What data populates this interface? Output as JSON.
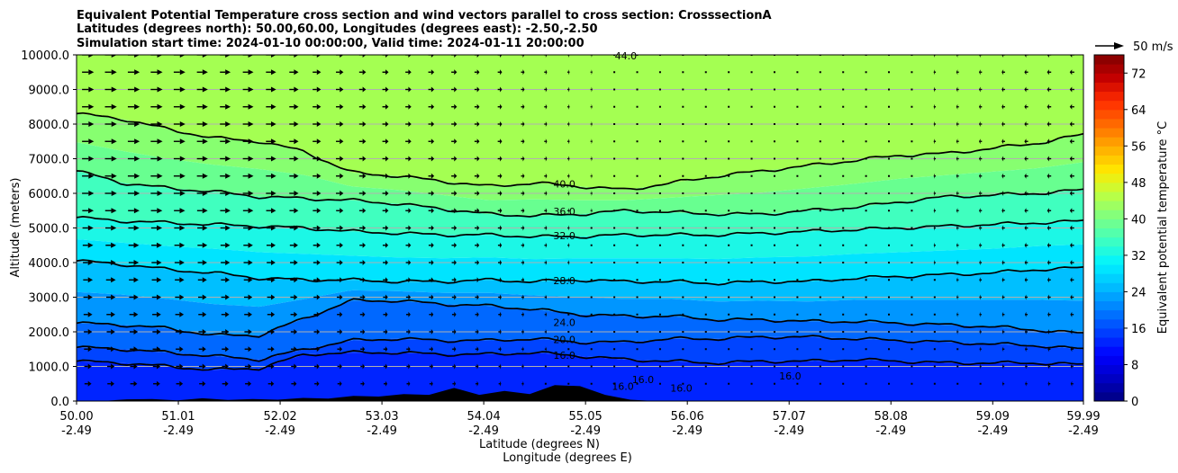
{
  "chart_data": {
    "type": "heatmap",
    "title_lines": [
      "Equivalent Potential Temperature cross section and wind vectors parallel to cross section: CrosssectionA",
      "Latitudes (degrees north): 50.00,60.00, Longitudes (degrees east): -2.50,-2.50",
      "Simulation start time: 2024-01-10 00:00:00, Valid time: 2024-01-11 20:00:00"
    ],
    "ylabel": "Altitude (meters)",
    "xlabel_lines": [
      "Latitude (degrees N)",
      "Longitude (degrees E)"
    ],
    "ylim": [
      0,
      10000
    ],
    "y_ticks": [
      "0.0",
      "1000.0",
      "2000.0",
      "3000.0",
      "4000.0",
      "5000.0",
      "6000.0",
      "7000.0",
      "8000.0",
      "9000.0",
      "10000.0"
    ],
    "x_ticks_lat": [
      "50.00",
      "51.01",
      "52.02",
      "53.03",
      "54.04",
      "55.05",
      "56.06",
      "57.07",
      "58.08",
      "59.09",
      "59.99"
    ],
    "x_ticks_lon": [
      "-2.49",
      "-2.49",
      "-2.49",
      "-2.49",
      "-2.49",
      "-2.49",
      "-2.49",
      "-2.49",
      "-2.49",
      "-2.49",
      "-2.49"
    ],
    "grid": "horizontal",
    "colorbar": {
      "label": "Equivalent potential temperature °C",
      "range": [
        0,
        76
      ],
      "ticks": [
        "0",
        "8",
        "16",
        "24",
        "32",
        "40",
        "48",
        "56",
        "64",
        "72"
      ],
      "colors": [
        "#00007f",
        "#0000c4",
        "#0000ff",
        "#0040ff",
        "#0080ff",
        "#00bfff",
        "#00f4ff",
        "#40ffbf",
        "#7fff80",
        "#bfff40",
        "#ffe800",
        "#ffac00",
        "#ff6a00",
        "#ff2d00",
        "#c40000",
        "#7f0000"
      ]
    },
    "contour_levels": [
      "16.0",
      "20.0",
      "24.0",
      "28.0",
      "32.0",
      "36.0",
      "40.0",
      "44.0"
    ],
    "contour_labels": [
      {
        "text": "40.0",
        "lat": 54.84,
        "alt": 6250
      },
      {
        "text": "36.0",
        "lat": 54.84,
        "alt": 5450
      },
      {
        "text": "32.0",
        "lat": 54.84,
        "alt": 4750
      },
      {
        "text": "28.0",
        "lat": 54.84,
        "alt": 3450
      },
      {
        "text": "24.0",
        "lat": 54.84,
        "alt": 2250
      },
      {
        "text": "20.0",
        "lat": 54.84,
        "alt": 1750
      },
      {
        "text": "16.0",
        "lat": 54.84,
        "alt": 1300
      },
      {
        "text": "16.0",
        "lat": 55.62,
        "alt": 600
      },
      {
        "text": "16.0",
        "lat": 55.42,
        "alt": 400
      },
      {
        "text": "16.0",
        "lat": 56.0,
        "alt": 350
      },
      {
        "text": "16.0",
        "lat": 57.08,
        "alt": 700
      },
      {
        "text": "44.0",
        "lat": 55.45,
        "alt": 9950
      }
    ],
    "contours": [
      {
        "level": 16,
        "alts": [
          1150,
          1100,
          1000,
          900,
          950,
          1350,
          1400,
          1400,
          1350,
          1350,
          1400,
          1300,
          1200,
          1150,
          1100,
          1150,
          1150,
          1200,
          1150,
          1100,
          1100,
          1100,
          1050
        ]
      },
      {
        "level": 20,
        "alts": [
          1550,
          1500,
          1400,
          1300,
          1200,
          1500,
          1750,
          1800,
          1750,
          1750,
          1800,
          1700,
          1700,
          1800,
          1800,
          1850,
          1850,
          1800,
          1750,
          1700,
          1650,
          1600,
          1500
        ]
      },
      {
        "level": 24,
        "alts": [
          2250,
          2200,
          2100,
          1900,
          1900,
          2400,
          2900,
          2900,
          2800,
          2750,
          2650,
          2500,
          2450,
          2450,
          2350,
          2350,
          2300,
          2300,
          2250,
          2200,
          2150,
          2050,
          1950
        ]
      },
      {
        "level": 28,
        "alts": [
          4050,
          3950,
          3800,
          3700,
          3550,
          3500,
          3500,
          3450,
          3450,
          3500,
          3450,
          3500,
          3450,
          3450,
          3400,
          3450,
          3450,
          3550,
          3600,
          3650,
          3700,
          3800,
          3850
        ]
      },
      {
        "level": 32,
        "alts": [
          5300,
          5200,
          5150,
          5100,
          5050,
          5000,
          4900,
          4850,
          4800,
          4800,
          4750,
          4750,
          4800,
          4800,
          4800,
          4850,
          4900,
          4950,
          5000,
          5050,
          5100,
          5150,
          5200
        ]
      },
      {
        "level": 36,
        "alts": [
          6650,
          6300,
          6150,
          6050,
          5900,
          5850,
          5800,
          5700,
          5550,
          5400,
          5350,
          5400,
          5500,
          5450,
          5400,
          5400,
          5500,
          5600,
          5750,
          5900,
          5950,
          6000,
          6100
        ]
      },
      {
        "level": 40,
        "alts": [
          8300,
          8150,
          7850,
          7600,
          7500,
          7200,
          6600,
          6500,
          6350,
          6200,
          6300,
          6200,
          6100,
          6300,
          6500,
          6650,
          6800,
          6950,
          7100,
          7150,
          7300,
          7450,
          7700
        ]
      }
    ],
    "fill_bands": [
      {
        "color": "#a4ff52"
      },
      {
        "color": "#87ff70"
      },
      {
        "color": "#68ff90"
      },
      {
        "color": "#40ffbf"
      },
      {
        "color": "#1cf7e6"
      },
      {
        "color": "#00e4ff"
      },
      {
        "color": "#00bfff"
      },
      {
        "color": "#0096ff"
      },
      {
        "color": "#0068ff"
      },
      {
        "color": "#0044ff"
      },
      {
        "color": "#0024ff"
      }
    ],
    "terrain_alts": [
      0,
      0,
      50,
      60,
      20,
      80,
      30,
      60,
      40,
      90,
      70,
      150,
      130,
      200,
      180,
      380,
      180,
      290,
      200,
      460,
      430,
      180,
      40,
      0,
      0,
      0,
      0,
      0,
      0,
      0,
      0,
      0,
      0,
      0,
      0,
      0,
      0,
      0,
      0,
      0,
      0
    ],
    "wind": {
      "reference_label": "50 m/s",
      "reference_speed": 50,
      "level_alts": [
        500,
        1000,
        1500,
        2000,
        2500,
        3000,
        3500,
        4000,
        4500,
        5000,
        5500,
        6000,
        6500,
        7000,
        7500,
        8000,
        8500,
        9000,
        9500,
        10000
      ],
      "column_speeds": [
        30,
        30,
        30,
        27,
        27,
        22,
        18,
        15,
        15,
        12,
        8,
        5,
        4,
        3,
        2,
        1,
        -1,
        -2,
        -4,
        -6,
        -8,
        -10,
        -12
      ]
    }
  }
}
